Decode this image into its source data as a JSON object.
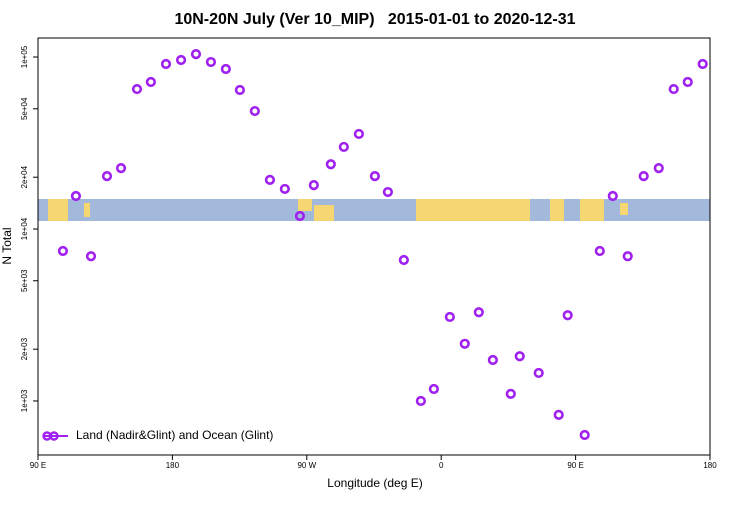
{
  "chart_data": {
    "type": "scatter",
    "title": "10N-20N July (Ver 10_MIP)   2015-01-01 to 2020-12-31",
    "x_label": "Longitude (deg E)",
    "y_label": "N Total",
    "x": [
      106.7,
      115.4,
      125.5,
      136.2,
      145.6,
      156.3,
      165.6,
      175.7,
      185.8,
      195.8,
      205.8,
      215.8,
      225.2,
      235.2,
      245.3,
      255.3,
      265.4,
      274.7,
      286.1,
      294.8,
      304.9,
      315.6,
      324.3,
      335.0,
      346.4,
      355.1,
      365.8,
      375.8,
      385.2,
      394.6,
      406.6,
      412.6,
      425.3,
      438.7,
      444.7,
      456.1,
      466.2,
      474.9,
      484.9,
      495.6,
      505.7,
      515.7,
      525.1,
      535.1
    ],
    "series": [
      {
        "name": "Land (Nadir&Glint) and Ocean (Glint)",
        "color": "#a020f0",
        "values": [
          7450,
          15560,
          6940,
          20300,
          22600,
          65100,
          71600,
          91100,
          96100,
          104000,
          93500,
          85200,
          64300,
          48500,
          19300,
          17100,
          11900,
          18000,
          23800,
          30000,
          35700,
          20300,
          16400,
          6600,
          1000,
          1174,
          3080,
          2150,
          3280,
          1730,
          1100,
          1820,
          1455,
          830,
          3150,
          634,
          7450,
          15560,
          6940,
          20300,
          22600,
          65100,
          71600,
          91100
        ]
      }
    ],
    "xlim": [
      90,
      540
    ],
    "xticks": [
      {
        "value": 90,
        "label": "90 E"
      },
      180,
      {
        "value": 270,
        "label": "90 W"
      },
      {
        "value": 360,
        "label": "0"
      },
      {
        "value": 450,
        "label": "90 E"
      },
      {
        "value": 540,
        "label": "180"
      }
    ],
    "ylim": [
      485,
      129000
    ],
    "log_y": true,
    "yticks": [
      {
        "value": 1000,
        "label": "1e+03"
      },
      {
        "value": 2000,
        "label": "2e+03"
      },
      {
        "value": 5000,
        "label": "5e+03"
      },
      {
        "value": 10000,
        "label": "1e+04"
      },
      {
        "value": 20000,
        "label": "2e+04"
      },
      {
        "value": 50000,
        "label": "5e+04"
      },
      {
        "value": 100000,
        "label": "1e+05"
      }
    ],
    "legend": "bottom-left"
  }
}
